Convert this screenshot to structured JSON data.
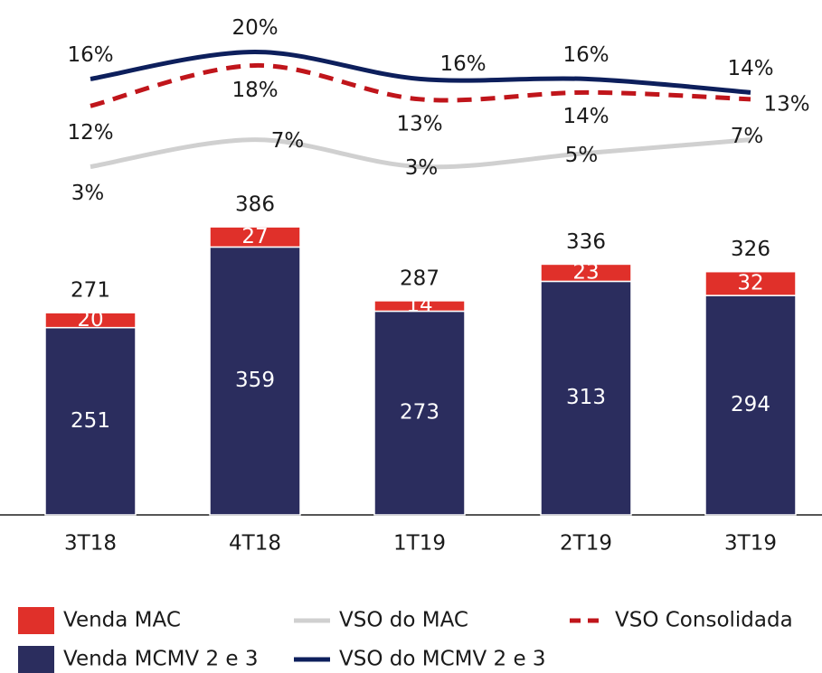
{
  "chart_data": {
    "type": "bar",
    "categories": [
      "3T18",
      "4T18",
      "1T19",
      "2T19",
      "3T19"
    ],
    "ylim": [
      0,
      690
    ],
    "y2lim": [
      -48.6,
      27.7
    ],
    "totals": [
      271,
      386,
      287,
      336,
      326
    ],
    "series": [
      {
        "name": "Venda MCMV 2 e 3",
        "type": "bar",
        "color": "#2b2d5e",
        "values": [
          251,
          359,
          273,
          313,
          294
        ]
      },
      {
        "name": "Venda MAC",
        "type": "bar",
        "color": "#e0302a",
        "values": [
          20,
          27,
          14,
          23,
          32
        ]
      },
      {
        "name": "VSO do MAC",
        "type": "line",
        "axis": "y2",
        "color": "#d0d0d0",
        "values": [
          3,
          7,
          3,
          5,
          7
        ],
        "value_labels": [
          "3%",
          "7%",
          "3%",
          "5%",
          "7%"
        ]
      },
      {
        "name": "VSO Consolidada",
        "type": "line",
        "axis": "y2",
        "color": "#c0151b",
        "dashed": true,
        "values": [
          12,
          18,
          13,
          14,
          13
        ],
        "value_labels": [
          "12%",
          "18%",
          "13%",
          "14%",
          "13%"
        ]
      },
      {
        "name": "VSO do MCMV 2 e 3",
        "type": "line",
        "axis": "y2",
        "color": "#0d1f5c",
        "values": [
          16,
          20,
          16,
          16,
          14
        ],
        "value_labels": [
          "16%",
          "20%",
          "16%",
          "16%",
          "14%"
        ]
      }
    ]
  }
}
